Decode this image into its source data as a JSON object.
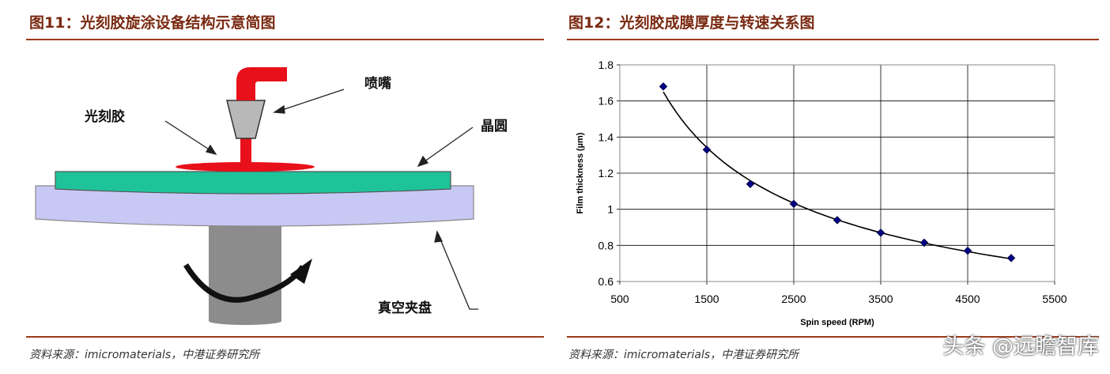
{
  "left": {
    "title": "图11：光刻胶旋涂设备结构示意简图",
    "labels": {
      "nozzle": "喷嘴",
      "photoresist": "光刻胶",
      "wafer": "晶圆",
      "chuck": "真空夹盘"
    },
    "source": "资料来源：imicromaterials，中港证券研究所"
  },
  "right": {
    "title": "图12：光刻胶成膜厚度与转速关系图",
    "source": "资料来源：imicromaterials，中港证券研究所"
  },
  "watermark": "头条 @远瞻智库",
  "chart_data": {
    "type": "scatter",
    "xlabel": "Spin speed (RPM)",
    "ylabel": "Film thickness (µm)",
    "xlim": [
      500,
      5500
    ],
    "ylim": [
      0.6,
      1.8
    ],
    "xticks": [
      "500",
      "1500",
      "2500",
      "3500",
      "4500",
      "5500"
    ],
    "yticks": [
      "0.6",
      "0.8",
      "1",
      "1.2",
      "1.4",
      "1.6",
      "1.8"
    ],
    "grid": true,
    "trendline": true,
    "marker_color": "#000080",
    "points": [
      {
        "x": 1000,
        "y": 1.68
      },
      {
        "x": 1500,
        "y": 1.33
      },
      {
        "x": 2000,
        "y": 1.14
      },
      {
        "x": 2500,
        "y": 1.03
      },
      {
        "x": 3000,
        "y": 0.94
      },
      {
        "x": 3500,
        "y": 0.87
      },
      {
        "x": 4000,
        "y": 0.815
      },
      {
        "x": 4500,
        "y": 0.77
      },
      {
        "x": 5000,
        "y": 0.73
      }
    ]
  }
}
